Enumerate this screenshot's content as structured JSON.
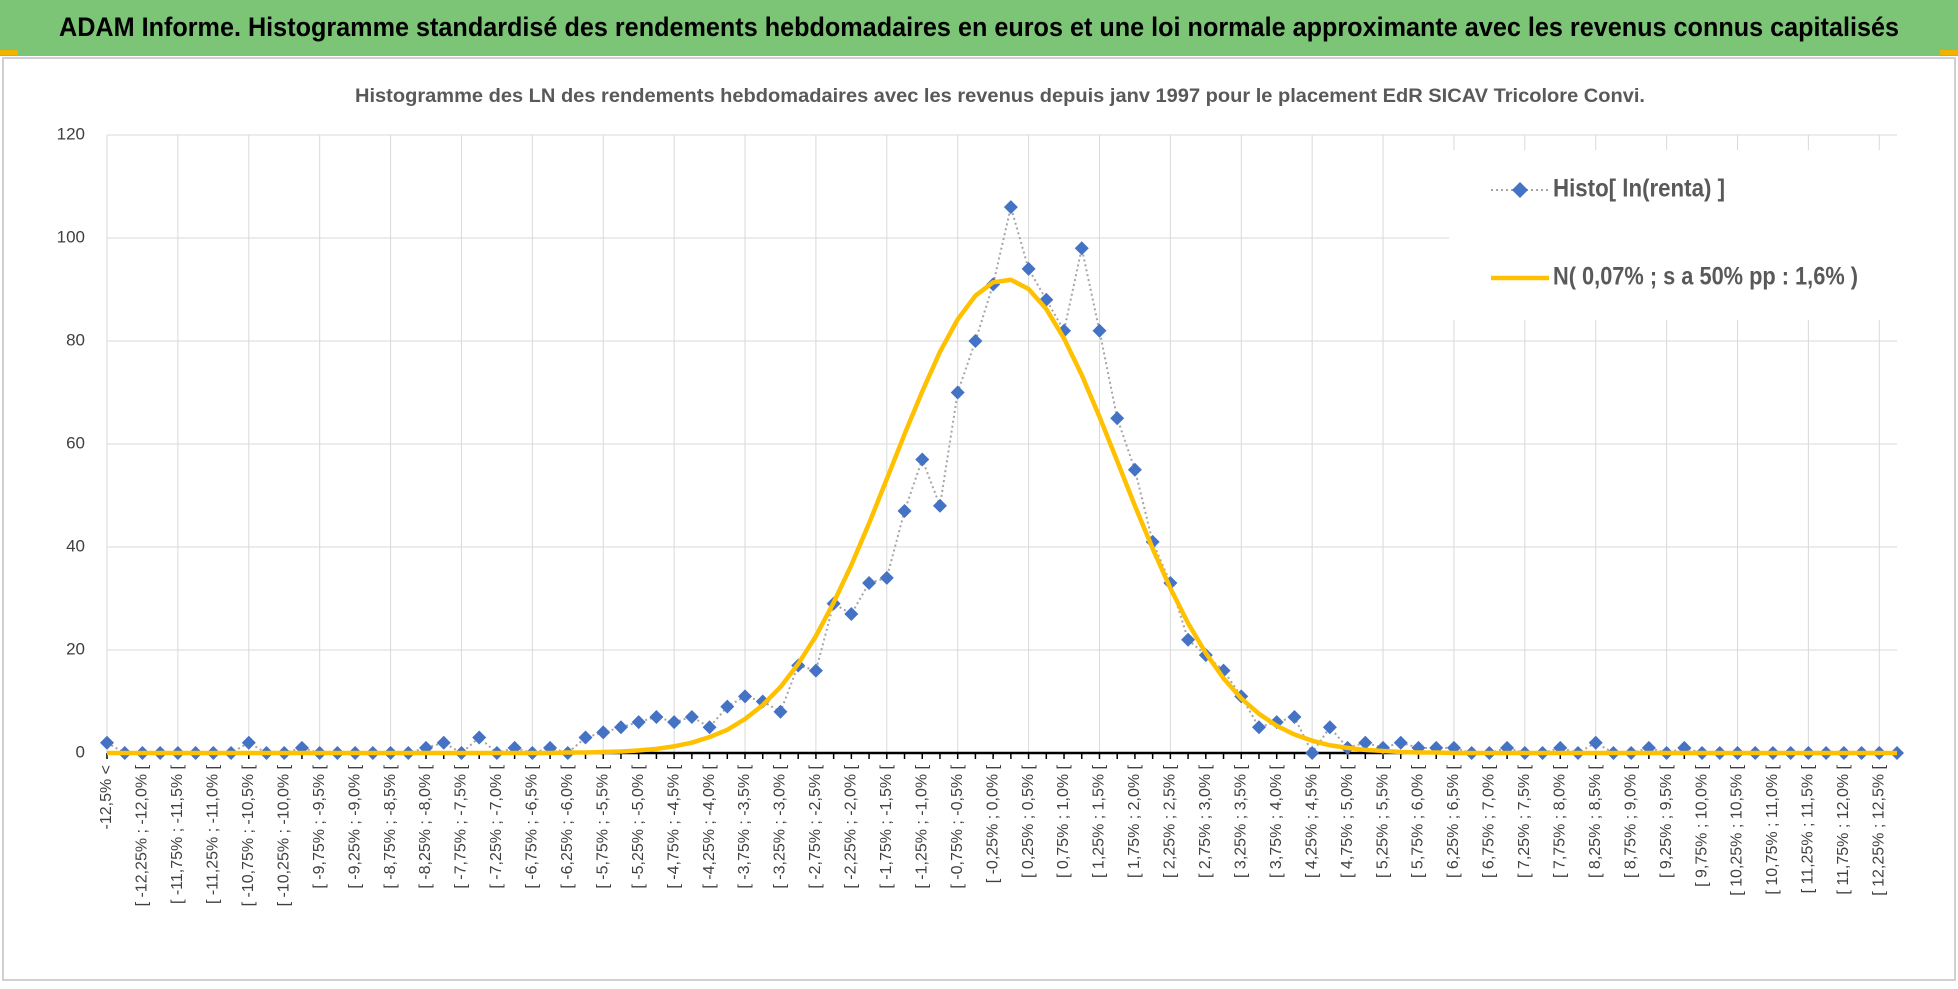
{
  "header": {
    "title": "ADAM Informe. Histogramme standardisé des rendements hebdomadaires en euros et une loi normale approximante avec les revenus connus capitalisés"
  },
  "chart_data": {
    "type": "line",
    "title": "Histogramme des LN des rendements hebdomadaires avec les revenus depuis janv 1997 pour le placement EdR SICAV Tricolore Convi.",
    "categories": [
      "-12,5% <",
      null,
      "[ -12,25% ; -12,0% [",
      null,
      "[ -11,75% ; -11,5% [",
      null,
      "[ -11,25% ; -11,0% [",
      null,
      "[ -10,75% ; -10,5% [",
      null,
      "[ -10,25% ; -10,0% [",
      null,
      "[ -9,75% ; -9,5% [",
      null,
      "[ -9,25% ; -9,0% [",
      null,
      "[ -8,75% ; -8,5% [",
      null,
      "[ -8,25% ; -8,0% [",
      null,
      "[ -7,75% ; -7,5% [",
      null,
      "[ -7,25% ; -7,0% [",
      null,
      "[ -6,75% ; -6,5% [",
      null,
      "[ -6,25% ; -6,0% [",
      null,
      "[ -5,75% ; -5,5% [",
      null,
      "[ -5,25% ; -5,0% [",
      null,
      "[ -4,75% ; -4,5% [",
      null,
      "[ -4,25% ; -4,0% [",
      null,
      "[ -3,75% ; -3,5% [",
      null,
      "[ -3,25% ; -3,0% [",
      null,
      "[ -2,75% ; -2,5% [",
      null,
      "[ -2,25% ; -2,0% [",
      null,
      "[ -1,75% ; -1,5% [",
      null,
      "[ -1,25% ; -1,0% [",
      null,
      "[ -0,75% ; -0,5% [",
      null,
      "[ -0,25% ; 0,0% [",
      null,
      "[ 0,25% ; 0,5% [",
      null,
      "[ 0,75% ; 1,0% [",
      null,
      "[ 1,25% ; 1,5% [",
      null,
      "[ 1,75% ; 2,0% [",
      null,
      "[ 2,25% ; 2,5% [",
      null,
      "[ 2,75% ; 3,0% [",
      null,
      "[ 3,25% ; 3,5% [",
      null,
      "[ 3,75% ; 4,0% [",
      null,
      "[ 4,25% ; 4,5% [",
      null,
      "[ 4,75% ; 5,0% [",
      null,
      "[ 5,25% ; 5,5% [",
      null,
      "[ 5,75% ; 6,0% [",
      null,
      "[ 6,25% ; 6,5% [",
      null,
      "[ 6,75% ; 7,0% [",
      null,
      "[ 7,25% ; 7,5% [",
      null,
      "[ 7,75% ; 8,0% [",
      null,
      "[ 8,25% ; 8,5% [",
      null,
      "[ 8,75% ; 9,0% [",
      null,
      "[ 9,25% ; 9,5% [",
      null,
      "[ 9,75% ; 10,0% [",
      null,
      "[ 10,25% ; 10,5% [",
      null,
      "[ 10,75% ; 11,0% [",
      null,
      "[ 11,25% ; 11,5% [",
      null,
      "[ 11,75% ; 12,0% [",
      null,
      "[ 12,25% ; 12,5% [",
      null
    ],
    "series": [
      {
        "name": "Histo[ ln(renta) ]",
        "color": "#4472c4",
        "line_color": "#a5a5a5",
        "marker": "diamond",
        "values": [
          2,
          0,
          0,
          0,
          0,
          0,
          0,
          0,
          2,
          0,
          0,
          1,
          0,
          0,
          0,
          0,
          0,
          0,
          1,
          2,
          0,
          3,
          0,
          1,
          0,
          1,
          0,
          3,
          4,
          5,
          6,
          7,
          6,
          7,
          5,
          9,
          11,
          10,
          8,
          17,
          16,
          29,
          27,
          33,
          34,
          47,
          57,
          48,
          70,
          80,
          91,
          106,
          94,
          88,
          82,
          98,
          82,
          65,
          55,
          41,
          33,
          22,
          19,
          16,
          11,
          5,
          6,
          7,
          0,
          5,
          1,
          2,
          1,
          2,
          1,
          1,
          1,
          0,
          0,
          1,
          0,
          0,
          1,
          0,
          2,
          0,
          0,
          1,
          0,
          1,
          0,
          0,
          0,
          0,
          0,
          0,
          0,
          0,
          0,
          0,
          0,
          0
        ]
      },
      {
        "name": "N( 0,07% ; s a 50% pp : 1,6% )",
        "color": "#ffc000",
        "values": [
          0,
          0,
          0,
          0,
          0,
          0,
          0,
          0,
          0,
          0,
          0,
          0,
          0,
          0,
          0,
          0,
          0,
          0,
          0,
          0,
          0,
          0,
          0,
          0,
          0,
          0,
          0.1,
          0.1,
          0.2,
          0.3,
          0.5,
          0.8,
          1.3,
          2.0,
          3.1,
          4.5,
          6.6,
          9.3,
          12.8,
          17.3,
          22.7,
          29.2,
          36.5,
          44.6,
          53.2,
          61.9,
          70.2,
          77.9,
          84.2,
          88.8,
          91.4,
          91.9,
          90.1,
          86.2,
          80.5,
          73.4,
          65.3,
          56.7,
          48.0,
          39.7,
          32.0,
          25.2,
          19.4,
          14.5,
          10.6,
          7.6,
          5.3,
          3.6,
          2.4,
          1.5,
          1.0,
          0.6,
          0.4,
          0.2,
          0.1,
          0.1,
          0,
          0,
          0,
          0,
          0,
          0,
          0,
          0,
          0,
          0,
          0,
          0,
          0,
          0,
          0,
          0,
          0,
          0,
          0,
          0,
          0,
          0,
          0,
          0,
          0,
          0
        ]
      }
    ],
    "ylim": [
      0,
      120
    ],
    "yticks": [
      0,
      20,
      40,
      60,
      80,
      100,
      120
    ],
    "grid": true,
    "legend": "top-right"
  }
}
